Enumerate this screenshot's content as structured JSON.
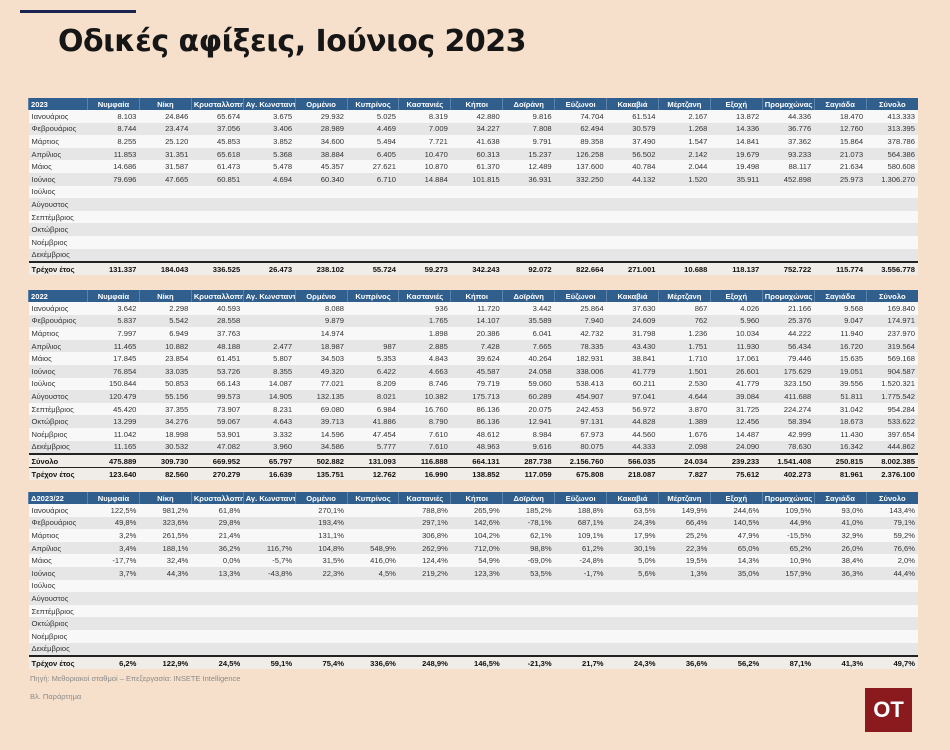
{
  "header": {
    "title": "Οδικές αφίξεις, Ιούνιος 2023"
  },
  "columns": [
    "Νυμφαία",
    "Νίκη",
    "Κρυσταλλοπηγή",
    "Αγ. Κωνσταντίνος",
    "Ορμένιο",
    "Κυπρίνος",
    "Καστανιές",
    "Κήποι",
    "Δοϊράνη",
    "Εύζωνοι",
    "Κακαβιά",
    "Μέρτζανη",
    "Εξοχή",
    "Προμαχώνας",
    "Σαγιάδα",
    "Σύνολο"
  ],
  "months": [
    "Ιανουάριος",
    "Φεβρουάριος",
    "Μάρτιος",
    "Απρίλιος",
    "Μάιος",
    "Ιούνιος",
    "Ιούλιος",
    "Αύγουστος",
    "Σεπτέμβριος",
    "Οκτώβριος",
    "Νοέμβριος",
    "Δεκέμβριος"
  ],
  "tables": [
    {
      "corner": "2023",
      "rows": [
        [
          "8.103",
          "24.846",
          "65.674",
          "3.675",
          "29.932",
          "5.025",
          "8.319",
          "42.880",
          "9.816",
          "74.704",
          "61.514",
          "2.167",
          "13.872",
          "44.336",
          "18.470",
          "413.333"
        ],
        [
          "8.744",
          "23.474",
          "37.056",
          "3.406",
          "28.989",
          "4.469",
          "7.009",
          "34.227",
          "7.808",
          "62.494",
          "30.579",
          "1.268",
          "14.336",
          "36.776",
          "12.760",
          "313.395"
        ],
        [
          "8.255",
          "25.120",
          "45.853",
          "3.852",
          "34.600",
          "5.494",
          "7.721",
          "41.638",
          "9.791",
          "89.358",
          "37.490",
          "1.547",
          "14.841",
          "37.362",
          "15.864",
          "378.786"
        ],
        [
          "11.853",
          "31.351",
          "65.618",
          "5.368",
          "38.884",
          "6.405",
          "10.470",
          "60.313",
          "15.237",
          "126.258",
          "56.502",
          "2.142",
          "19.679",
          "93.233",
          "21.073",
          "564.386"
        ],
        [
          "14.686",
          "31.587",
          "61.473",
          "5.478",
          "45.357",
          "27.621",
          "10.870",
          "61.370",
          "12.489",
          "137.600",
          "40.784",
          "2.044",
          "19.498",
          "88.117",
          "21.634",
          "580.608"
        ],
        [
          "79.696",
          "47.665",
          "60.851",
          "4.694",
          "60.340",
          "6.710",
          "14.884",
          "101.815",
          "36.931",
          "332.250",
          "44.132",
          "1.520",
          "35.911",
          "452.898",
          "25.973",
          "1.306.270"
        ],
        null,
        null,
        null,
        null,
        null,
        null
      ],
      "totals": [
        {
          "label": "Τρέχον έτος",
          "values": [
            "131.337",
            "184.043",
            "336.525",
            "26.473",
            "238.102",
            "55.724",
            "59.273",
            "342.243",
            "92.072",
            "822.664",
            "271.001",
            "10.688",
            "118.137",
            "752.722",
            "115.774",
            "3.556.778"
          ]
        }
      ]
    },
    {
      "corner": "2022",
      "rows": [
        [
          "3.642",
          "2.298",
          "40.593",
          null,
          "8.088",
          null,
          "936",
          "11.720",
          "3.442",
          "25.864",
          "37.630",
          "867",
          "4.026",
          "21.166",
          "9.568",
          "169.840"
        ],
        [
          "5.837",
          "5.542",
          "28.558",
          null,
          "9.879",
          null,
          "1.765",
          "14.107",
          "35.589",
          "7.940",
          "24.609",
          "762",
          "5.960",
          "25.376",
          "9.047",
          "174.971"
        ],
        [
          "7.997",
          "6.949",
          "37.763",
          null,
          "14.974",
          null,
          "1.898",
          "20.386",
          "6.041",
          "42.732",
          "31.798",
          "1.236",
          "10.034",
          "44.222",
          "11.940",
          "237.970"
        ],
        [
          "11.465",
          "10.882",
          "48.188",
          "2.477",
          "18.987",
          "987",
          "2.885",
          "7.428",
          "7.665",
          "78.335",
          "43.430",
          "1.751",
          "11.930",
          "56.434",
          "16.720",
          "319.564"
        ],
        [
          "17.845",
          "23.854",
          "61.451",
          "5.807",
          "34.503",
          "5.353",
          "4.843",
          "39.624",
          "40.264",
          "182.931",
          "38.841",
          "1.710",
          "17.061",
          "79.446",
          "15.635",
          "569.168"
        ],
        [
          "76.854",
          "33.035",
          "53.726",
          "8.355",
          "49.320",
          "6.422",
          "4.663",
          "45.587",
          "24.058",
          "338.006",
          "41.779",
          "1.501",
          "26.601",
          "175.629",
          "19.051",
          "904.587"
        ],
        [
          "150.844",
          "50.853",
          "66.143",
          "14.087",
          "77.021",
          "8.209",
          "8.746",
          "79.719",
          "59.060",
          "538.413",
          "60.211",
          "2.530",
          "41.779",
          "323.150",
          "39.556",
          "1.520.321"
        ],
        [
          "120.479",
          "55.156",
          "99.573",
          "14.905",
          "132.135",
          "8.021",
          "10.382",
          "175.713",
          "60.289",
          "454.907",
          "97.041",
          "4.644",
          "39.084",
          "411.688",
          "51.811",
          "1.775.542"
        ],
        [
          "45.420",
          "37.355",
          "73.907",
          "8.231",
          "69.080",
          "6.984",
          "16.760",
          "86.136",
          "20.075",
          "242.453",
          "56.972",
          "3.870",
          "31.725",
          "224.274",
          "31.042",
          "954.284"
        ],
        [
          "13.299",
          "34.276",
          "59.067",
          "4.643",
          "39.713",
          "41.886",
          "8.790",
          "86.136",
          "12.941",
          "97.131",
          "44.828",
          "1.389",
          "12.456",
          "58.394",
          "18.673",
          "533.622"
        ],
        [
          "11.042",
          "18.998",
          "53.901",
          "3.332",
          "14.596",
          "47.454",
          "7.610",
          "48.612",
          "8.984",
          "67.973",
          "44.560",
          "1.676",
          "14.487",
          "42.999",
          "11.430",
          "397.654"
        ],
        [
          "11.165",
          "30.532",
          "47.082",
          "3.960",
          "34.586",
          "5.777",
          "7.610",
          "48.963",
          "9.616",
          "80.075",
          "44.333",
          "2.098",
          "24.090",
          "78.630",
          "16.342",
          "444.862"
        ]
      ],
      "totals": [
        {
          "label": "Σύνολο",
          "values": [
            "475.889",
            "309.730",
            "669.952",
            "65.797",
            "502.882",
            "131.093",
            "116.888",
            "664.131",
            "287.738",
            "2.156.760",
            "566.035",
            "24.034",
            "239.233",
            "1.541.408",
            "250.815",
            "8.002.385"
          ]
        },
        {
          "label": "Τρέχον έτος",
          "values": [
            "123.640",
            "82.560",
            "270.279",
            "16.639",
            "135.751",
            "12.762",
            "16.990",
            "138.852",
            "117.059",
            "675.808",
            "218.087",
            "7.827",
            "75.612",
            "402.273",
            "81.961",
            "2.376.100"
          ]
        }
      ]
    },
    {
      "corner": "Δ2023/22",
      "rows": [
        [
          "122,5%",
          "981,2%",
          "61,8%",
          null,
          "270,1%",
          null,
          "788,8%",
          "265,9%",
          "185,2%",
          "188,8%",
          "63,5%",
          "149,9%",
          "244,6%",
          "109,5%",
          "93,0%",
          "143,4%"
        ],
        [
          "49,8%",
          "323,6%",
          "29,8%",
          null,
          "193,4%",
          null,
          "297,1%",
          "142,6%",
          "-78,1%",
          "687,1%",
          "24,3%",
          "66,4%",
          "140,5%",
          "44,9%",
          "41,0%",
          "79,1%"
        ],
        [
          "3,2%",
          "261,5%",
          "21,4%",
          null,
          "131,1%",
          null,
          "306,8%",
          "104,2%",
          "62,1%",
          "109,1%",
          "17,9%",
          "25,2%",
          "47,9%",
          "-15,5%",
          "32,9%",
          "59,2%"
        ],
        [
          "3,4%",
          "188,1%",
          "36,2%",
          "116,7%",
          "104,8%",
          "548,9%",
          "262,9%",
          "712,0%",
          "98,8%",
          "61,2%",
          "30,1%",
          "22,3%",
          "65,0%",
          "65,2%",
          "26,0%",
          "76,6%"
        ],
        [
          "-17,7%",
          "32,4%",
          "0,0%",
          "-5,7%",
          "31,5%",
          "416,0%",
          "124,4%",
          "54,9%",
          "-69,0%",
          "-24,8%",
          "5,0%",
          "19,5%",
          "14,3%",
          "10,9%",
          "38,4%",
          "2,0%"
        ],
        [
          "3,7%",
          "44,3%",
          "13,3%",
          "-43,8%",
          "22,3%",
          "4,5%",
          "219,2%",
          "123,3%",
          "53,5%",
          "-1,7%",
          "5,6%",
          "1,3%",
          "35,0%",
          "157,9%",
          "36,3%",
          "44,4%"
        ],
        null,
        null,
        null,
        null,
        null,
        null
      ],
      "totals": [
        {
          "label": "Τρέχον έτος",
          "values": [
            "6,2%",
            "122,9%",
            "24,5%",
            "59,1%",
            "75,4%",
            "336,6%",
            "248,9%",
            "146,5%",
            "-21,3%",
            "21,7%",
            "24,3%",
            "36,6%",
            "56,2%",
            "87,1%",
            "41,3%",
            "49,7%"
          ]
        }
      ]
    }
  ],
  "footer": {
    "source": "Πηγή: Μεθοριακοί σταθμοί – Επεξεργασία: INSETE Intelligence",
    "note": "Βλ. Παράρτημα"
  },
  "logo": "OT"
}
